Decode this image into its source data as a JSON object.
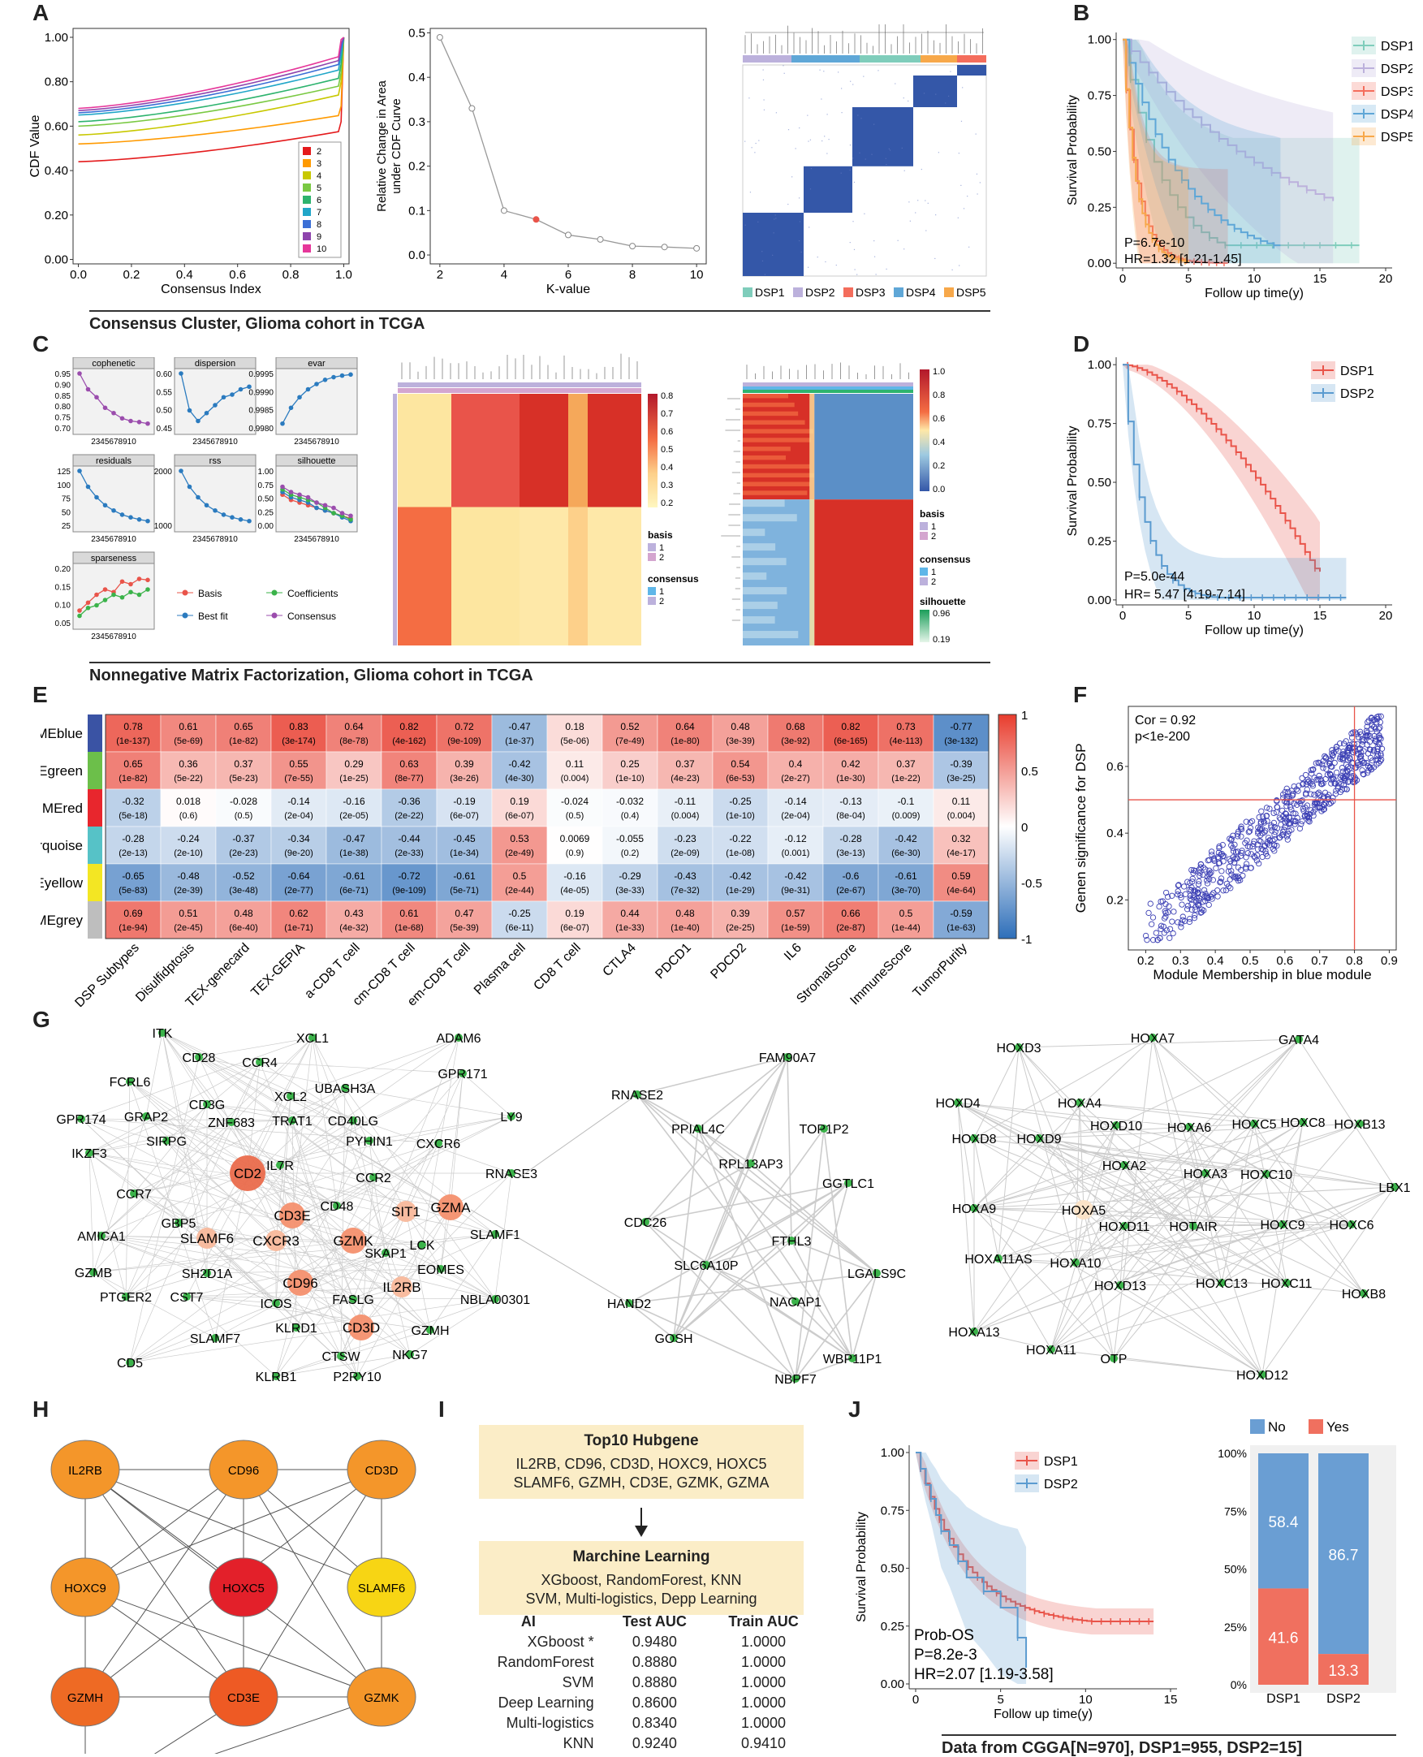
{
  "panels": {
    "A": "A",
    "B": "B",
    "C": "C",
    "D": "D",
    "E": "E",
    "F": "F",
    "G": "G",
    "H": "H",
    "I": "I",
    "J": "J"
  },
  "captions": {
    "A": "Consensus Cluster, Glioma cohort in TCGA",
    "C": "Nonnegative Matrix Factorization, Glioma cohort in TCGA",
    "J": "Data from CGGA[N=970], DSP1=955, DSP2=15]"
  },
  "colors": {
    "DSP1": "#7fcdbb",
    "DSP2": "#bcb1dc",
    "DSP3": "#f46d5c",
    "DSP4": "#5fa7d7",
    "DSP5": "#f7a84a",
    "red": "#e9544a",
    "blue": "#5b9bd0",
    "heat_blue": "#3457a8"
  },
  "chart_data": [
    {
      "id": "A1",
      "type": "line",
      "xlabel": "Consensus Index",
      "ylabel": "CDF Value",
      "xlim": [
        0,
        1
      ],
      "ylim": [
        0,
        1
      ],
      "xticks": [
        "0.0",
        "0.2",
        "0.4",
        "0.6",
        "0.8",
        "1.0"
      ],
      "yticks": [
        "0.00",
        "0.20",
        "0.40",
        "0.60",
        "0.80",
        "1.00"
      ],
      "legend": [
        "2",
        "3",
        "4",
        "5",
        "6",
        "7",
        "8",
        "9",
        "10"
      ],
      "series_start": [
        0.44,
        0.52,
        0.56,
        0.6,
        0.62,
        0.65,
        0.66,
        0.67,
        0.68
      ],
      "series_end": [
        0.62,
        0.69,
        0.8,
        0.84,
        0.88,
        0.92,
        0.95,
        0.97,
        0.99
      ]
    },
    {
      "id": "A2",
      "type": "line",
      "xlabel": "K-value",
      "ylabel": "Relative Change in Area under CDF Curve",
      "x": [
        2,
        3,
        4,
        5,
        6,
        7,
        8,
        9,
        10
      ],
      "y": [
        0.49,
        0.33,
        0.1,
        0.08,
        0.045,
        0.035,
        0.02,
        0.018,
        0.015
      ],
      "highlight_index": 3,
      "xticks": [
        "2",
        "4",
        "6",
        "8",
        "10"
      ],
      "yticks": [
        "0.0",
        "0.1",
        "0.2",
        "0.3",
        "0.4",
        "0.5"
      ]
    },
    {
      "id": "A3",
      "type": "heatmap",
      "legend": [
        "DSP1",
        "DSP2",
        "DSP3",
        "DSP4",
        "DSP5"
      ]
    },
    {
      "id": "B",
      "type": "line",
      "xlabel": "Follow up time(y)",
      "ylabel": "Survival Probability",
      "xticks": [
        "0",
        "5",
        "10",
        "15",
        "20"
      ],
      "yticks": [
        "0.00",
        "0.25",
        "0.50",
        "0.75",
        "1.00"
      ],
      "legend": [
        "DSP1",
        "DSP2",
        "DSP3",
        "DSP4",
        "DSP5"
      ],
      "annotations": [
        "P=6.7e-10",
        "HR=1.32 [1.21-1.45]"
      ]
    },
    {
      "id": "C1",
      "type": "line",
      "subplots": [
        "cophenetic",
        "dispersion",
        "evar",
        "residuals",
        "rss",
        "silhouette",
        "sparseness"
      ],
      "ticks": {
        "cophenetic": [
          "0.95",
          "0.90",
          "0.85",
          "0.80",
          "0.75",
          "0.70"
        ],
        "dispersion": [
          "0.60",
          "0.55",
          "0.50",
          "0.45"
        ],
        "evar": [
          "0.9995",
          "0.9990",
          "0.9985",
          "0.9980"
        ],
        "residuals": [
          "125",
          "100",
          "75",
          "50",
          "25"
        ],
        "rss": [
          "2000",
          "1000"
        ],
        "silhouette": [
          "1.00",
          "0.75",
          "0.50",
          "0.25",
          "0.00"
        ],
        "sparseness": [
          "0.20",
          "0.15",
          "0.10",
          "0.05"
        ]
      },
      "xtick": "2345678910",
      "legend": [
        "Basis",
        "Best fit",
        "Coefficients",
        "Consensus"
      ]
    },
    {
      "id": "C2",
      "type": "heatmap",
      "scale": [
        "0.8",
        "0.7",
        "0.6",
        "0.5",
        "0.4",
        "0.3",
        "0.2"
      ],
      "legend_titles": [
        "basis",
        "consensus"
      ],
      "legend_items": [
        "1",
        "2"
      ]
    },
    {
      "id": "C3",
      "type": "heatmap",
      "scale": [
        "1.0",
        "0.8",
        "0.6",
        "0.4",
        "0.2",
        "0.0"
      ],
      "legend_titles": [
        "basis",
        "consensus",
        "silhouette"
      ],
      "legend_items": [
        "1",
        "2"
      ],
      "silhouette_range": [
        "0.96",
        "0.19"
      ]
    },
    {
      "id": "D",
      "type": "line",
      "xlabel": "Follow up time(y)",
      "ylabel": "Survival Probability",
      "xticks": [
        "0",
        "5",
        "10",
        "15",
        "20"
      ],
      "yticks": [
        "0.00",
        "0.25",
        "0.50",
        "0.75",
        "1.00"
      ],
      "legend": [
        "DSP1",
        "DSP2"
      ],
      "annotations": [
        "P=5.0e-44",
        "HR= 5.47 [4.19-7.14]"
      ]
    },
    {
      "id": "E",
      "type": "heatmap",
      "rows": [
        "MEblue",
        "MEgreen",
        "MEred",
        "MEturquoise",
        "MEyellow",
        "MEgrey"
      ],
      "row_colors": [
        "#3a53a4",
        "#6cbf4a",
        "#e8262d",
        "#56c2c7",
        "#f3e623",
        "#bebebe"
      ],
      "cols": [
        "DSP Subtypes",
        "Disulfidptosis",
        "TEX-genecard",
        "TEX-GEPIA",
        "a-CD8 T cell",
        "cm-CD8 T cell",
        "em-CD8 T cell",
        "Plasma cell",
        "CD8 T cell",
        "CTLA4",
        "PDCD1",
        "PDCD2",
        "IL6",
        "StromalScore",
        "ImmuneScore",
        "TumorPurity"
      ],
      "values": [
        [
          "0.78",
          "0.61",
          "0.65",
          "0.83",
          "0.64",
          "0.82",
          "0.72",
          "-0.47",
          "0.18",
          "0.52",
          "0.64",
          "0.48",
          "0.68",
          "0.82",
          "0.73",
          "-0.77"
        ],
        [
          "0.65",
          "0.36",
          "0.37",
          "0.55",
          "0.29",
          "0.63",
          "0.39",
          "-0.42",
          "0.11",
          "0.25",
          "0.37",
          "0.54",
          "0.4",
          "0.42",
          "0.37",
          "-0.39"
        ],
        [
          "-0.32",
          "0.018",
          "-0.028",
          "-0.14",
          "-0.16",
          "-0.36",
          "-0.19",
          "0.19",
          "-0.024",
          "-0.032",
          "-0.11",
          "-0.25",
          "-0.14",
          "-0.13",
          "-0.1",
          "0.11"
        ],
        [
          "-0.28",
          "-0.24",
          "-0.37",
          "-0.34",
          "-0.47",
          "-0.44",
          "-0.45",
          "0.53",
          "0.0069",
          "-0.055",
          "-0.23",
          "-0.22",
          "-0.12",
          "-0.28",
          "-0.42",
          "0.32"
        ],
        [
          "-0.65",
          "-0.48",
          "-0.52",
          "-0.64",
          "-0.61",
          "-0.72",
          "-0.61",
          "0.5",
          "-0.16",
          "-0.29",
          "-0.43",
          "-0.42",
          "-0.42",
          "-0.6",
          "-0.61",
          "0.59"
        ],
        [
          "0.69",
          "0.51",
          "0.48",
          "0.62",
          "0.43",
          "0.61",
          "0.47",
          "-0.25",
          "0.19",
          "0.44",
          "0.48",
          "0.39",
          "0.57",
          "0.66",
          "0.5",
          "-0.59"
        ]
      ],
      "pvalues": [
        [
          "(1e-137)",
          "(5e-69)",
          "(1e-82)",
          "(3e-174)",
          "(8e-78)",
          "(4e-162)",
          "(9e-109)",
          "(1e-37)",
          "(5e-06)",
          "(7e-49)",
          "(1e-80)",
          "(3e-39)",
          "(3e-92)",
          "(6e-165)",
          "(4e-113)",
          "(3e-132)"
        ],
        [
          "(1e-82)",
          "(5e-22)",
          "(5e-23)",
          "(7e-55)",
          "(1e-25)",
          "(8e-77)",
          "(3e-26)",
          "(4e-30)",
          "(0.004)",
          "(1e-10)",
          "(4e-23)",
          "(6e-53)",
          "(2e-27)",
          "(1e-30)",
          "(1e-22)",
          "(3e-25)"
        ],
        [
          "(5e-18)",
          "(0.6)",
          "(0.5)",
          "(2e-04)",
          "(2e-05)",
          "(2e-22)",
          "(6e-07)",
          "(6e-07)",
          "(0.5)",
          "(0.4)",
          "(0.004)",
          "(1e-10)",
          "(2e-04)",
          "(8e-04)",
          "(0.009)",
          "(0.004)"
        ],
        [
          "(2e-13)",
          "(2e-10)",
          "(2e-23)",
          "(9e-20)",
          "(1e-38)",
          "(2e-33)",
          "(1e-34)",
          "(2e-49)",
          "(0.9)",
          "(0.2)",
          "(2e-09)",
          "(1e-08)",
          "(0.001)",
          "(3e-13)",
          "(6e-30)",
          "(4e-17)"
        ],
        [
          "(5e-83)",
          "(2e-39)",
          "(3e-48)",
          "(2e-77)",
          "(6e-71)",
          "(9e-109)",
          "(5e-71)",
          "(2e-44)",
          "(4e-05)",
          "(3e-33)",
          "(7e-32)",
          "(1e-29)",
          "(9e-31)",
          "(2e-67)",
          "(3e-70)",
          "(4e-64)"
        ],
        [
          "(1e-94)",
          "(2e-45)",
          "(6e-40)",
          "(1e-71)",
          "(4e-32)",
          "(1e-68)",
          "(5e-39)",
          "(6e-11)",
          "(6e-07)",
          "(1e-33)",
          "(1e-40)",
          "(2e-25)",
          "(1e-59)",
          "(2e-87)",
          "(1e-44)",
          "(1e-63)"
        ]
      ],
      "scale": [
        "1",
        "0.5",
        "0",
        "-0.5",
        "-1"
      ]
    },
    {
      "id": "F",
      "type": "scatter",
      "xlabel": "Module Membership in blue module",
      "ylabel": "Genen significance for DSP",
      "xticks": [
        "0.2",
        "0.3",
        "0.4",
        "0.5",
        "0.6",
        "0.7",
        "0.8",
        "0.9"
      ],
      "yticks": [
        "0.2",
        "0.4",
        "0.6"
      ],
      "xlim": [
        0.15,
        0.92
      ],
      "ylim": [
        0.05,
        0.78
      ],
      "vline": 0.8,
      "hline": 0.5,
      "annotations": [
        "Cor = 0.92",
        "p<1e-200"
      ],
      "n_points": 650
    },
    {
      "id": "J1",
      "type": "line",
      "xlabel": "Follow up time(y)",
      "ylabel": "Survival Probability",
      "xticks": [
        "0",
        "5",
        "10",
        "15"
      ],
      "yticks": [
        "0.00",
        "0.25",
        "0.50",
        "0.75",
        "1.00"
      ],
      "legend": [
        "DSP1",
        "DSP2"
      ],
      "annotations": [
        "Prob-OS",
        "P=8.2e-3",
        "HR=2.07 [1.19-3.58]"
      ]
    },
    {
      "id": "J2",
      "type": "bar",
      "categories": [
        "DSP1",
        "DSP2"
      ],
      "series": [
        {
          "name": "No",
          "values": [
            58.4,
            86.7
          ]
        },
        {
          "name": "Yes",
          "values": [
            41.6,
            13.3
          ]
        }
      ],
      "labels": {
        "No": [
          "58.4",
          "86.7"
        ],
        "Yes": [
          "41.6",
          "13.3"
        ]
      },
      "yticks": [
        "100%",
        "75%",
        "50%",
        "25%",
        "0%"
      ]
    }
  ],
  "network_g": {
    "cluster1": [
      {
        "label": "ITK",
        "c": "s"
      },
      {
        "label": "CD28",
        "c": "s"
      },
      {
        "label": "CCR4",
        "c": "s"
      },
      {
        "label": "XCL1",
        "c": "s"
      },
      {
        "label": "ADAM6",
        "c": "s"
      },
      {
        "label": "FCRL6",
        "c": "s"
      },
      {
        "label": "XCL2",
        "c": "s"
      },
      {
        "label": "UBASH3A",
        "c": "s"
      },
      {
        "label": "GPR171",
        "c": "s"
      },
      {
        "label": "GPR174",
        "c": "s"
      },
      {
        "label": "GRAP2",
        "c": "s"
      },
      {
        "label": "CD3G",
        "c": "s"
      },
      {
        "label": "ZNF683",
        "c": "s"
      },
      {
        "label": "TRAT1",
        "c": "s"
      },
      {
        "label": "CD40LG",
        "c": "s"
      },
      {
        "label": "LY9",
        "c": "s"
      },
      {
        "label": "IKZF3",
        "c": "s"
      },
      {
        "label": "SIRPG",
        "c": "s"
      },
      {
        "label": "PYHIN1",
        "c": "s"
      },
      {
        "label": "CXCR6",
        "c": "s"
      },
      {
        "label": "RNASE3",
        "c": "s"
      },
      {
        "label": "CD2",
        "c": "xl"
      },
      {
        "label": "IL7R",
        "c": "s"
      },
      {
        "label": "CCR2",
        "c": "s"
      },
      {
        "label": "CCR7",
        "c": "s"
      },
      {
        "label": "CD3E",
        "c": "l"
      },
      {
        "label": "CD48",
        "c": "s"
      },
      {
        "label": "SIT1",
        "c": "m"
      },
      {
        "label": "GZMA",
        "c": "l"
      },
      {
        "label": "AMICA1",
        "c": "s"
      },
      {
        "label": "GBP5",
        "c": "s"
      },
      {
        "label": "SLAMF6",
        "c": "m"
      },
      {
        "label": "GZMK",
        "c": "l"
      },
      {
        "label": "LCK",
        "c": "s"
      },
      {
        "label": "SLAMF1",
        "c": "s"
      },
      {
        "label": "CXCR3",
        "c": "m"
      },
      {
        "label": "SKAP1",
        "c": "s"
      },
      {
        "label": "EOMES",
        "c": "s"
      },
      {
        "label": "GZMB",
        "c": "s"
      },
      {
        "label": "SH2D1A",
        "c": "s"
      },
      {
        "label": "CD96",
        "c": "l"
      },
      {
        "label": "IL2RB",
        "c": "m"
      },
      {
        "label": "PTGER2",
        "c": "s"
      },
      {
        "label": "CST7",
        "c": "s"
      },
      {
        "label": "ICOS",
        "c": "s"
      },
      {
        "label": "FASLG",
        "c": "s"
      },
      {
        "label": "NBLA00301",
        "c": "s"
      },
      {
        "label": "KLRD1",
        "c": "s"
      },
      {
        "label": "CD3D",
        "c": "l"
      },
      {
        "label": "GZMH",
        "c": "s"
      },
      {
        "label": "SLAMF7",
        "c": "s"
      },
      {
        "label": "CTSW",
        "c": "s"
      },
      {
        "label": "NKG7",
        "c": "s"
      },
      {
        "label": "CD5",
        "c": "s"
      },
      {
        "label": "KLRB1",
        "c": "s"
      },
      {
        "label": "P2RY10",
        "c": "s"
      }
    ],
    "cluster2": [
      {
        "label": "FAM90A7"
      },
      {
        "label": "RNASE2"
      },
      {
        "label": "PPIAL4C"
      },
      {
        "label": "TOP1P2"
      },
      {
        "label": "RPL13AP3"
      },
      {
        "label": "GGTLC1"
      },
      {
        "label": "CDC26"
      },
      {
        "label": "FTHL3"
      },
      {
        "label": "SLC6A10P"
      },
      {
        "label": "LGALS9C"
      },
      {
        "label": "HAND2"
      },
      {
        "label": "NACAP1"
      },
      {
        "label": "GOSH"
      },
      {
        "label": "WBP11P1"
      },
      {
        "label": "NBPF7"
      }
    ],
    "cluster3": [
      {
        "label": "HOXD3"
      },
      {
        "label": "HOXA7"
      },
      {
        "label": "GATA4"
      },
      {
        "label": "HOXA4"
      },
      {
        "label": "HOXD4"
      },
      {
        "label": "HOXD10"
      },
      {
        "label": "HOXA6"
      },
      {
        "label": "HOXC5"
      },
      {
        "label": "HOXC8"
      },
      {
        "label": "HOXD8"
      },
      {
        "label": "HOXD9"
      },
      {
        "label": "HOXB13"
      },
      {
        "label": "HOXA2"
      },
      {
        "label": "HOXA3"
      },
      {
        "label": "HOXC10"
      },
      {
        "label": "LBX1"
      },
      {
        "label": "HOXA9"
      },
      {
        "label": "HOXA5"
      },
      {
        "label": "HOXD11"
      },
      {
        "label": "HOTAIR"
      },
      {
        "label": "HOXC9"
      },
      {
        "label": "HOXC6"
      },
      {
        "label": "HOXA11AS"
      },
      {
        "label": "HOXA10"
      },
      {
        "label": "HOXD13"
      },
      {
        "label": "HOXC13"
      },
      {
        "label": "HOXC11"
      },
      {
        "label": "HOXB8"
      },
      {
        "label": "HOXA13"
      },
      {
        "label": "HOXA11"
      },
      {
        "label": "OTP"
      },
      {
        "label": "HOXD12"
      }
    ]
  },
  "network_h": {
    "nodes": [
      {
        "label": "IL2RB",
        "color": "#f4962a"
      },
      {
        "label": "CD96",
        "color": "#f4962a"
      },
      {
        "label": "CD3D",
        "color": "#f4962a"
      },
      {
        "label": "HOXC9",
        "color": "#f4962a"
      },
      {
        "label": "HOXC5",
        "color": "#e3202a"
      },
      {
        "label": "SLAMF6",
        "color": "#f7d514"
      },
      {
        "label": "GZMH",
        "color": "#ee6a24"
      },
      {
        "label": "CD3E",
        "color": "#ee5a24"
      },
      {
        "label": "GZMK",
        "color": "#f4962a"
      },
      {
        "label": "GZMA",
        "color": "#ee5a24"
      }
    ]
  },
  "panel_i": {
    "box1_title": "Top10 Hubgene",
    "box1_line1": "IL2RB, CD96, CD3D, HOXC9, HOXC5",
    "box1_line2": "SLAMF6, GZMH, CD3E, GZMK, GZMA",
    "box2_title": "Marchine Learning",
    "box2_line1": "XGboost, RandomForest, KNN",
    "box2_line2": "SVM, Multi-logistics, Depp Learning",
    "headers": [
      "AI",
      "Test AUC",
      "Train AUC"
    ],
    "rows": [
      [
        "XGboost *",
        "0.9480",
        "1.0000"
      ],
      [
        "RandomForest",
        "0.8880",
        "1.0000"
      ],
      [
        "SVM",
        "0.8880",
        "1.0000"
      ],
      [
        "Deep Learning",
        "0.8600",
        "1.0000"
      ],
      [
        "Multi-logistics",
        "0.8340",
        "1.0000"
      ],
      [
        "KNN",
        "0.9240",
        "0.9410"
      ]
    ]
  }
}
